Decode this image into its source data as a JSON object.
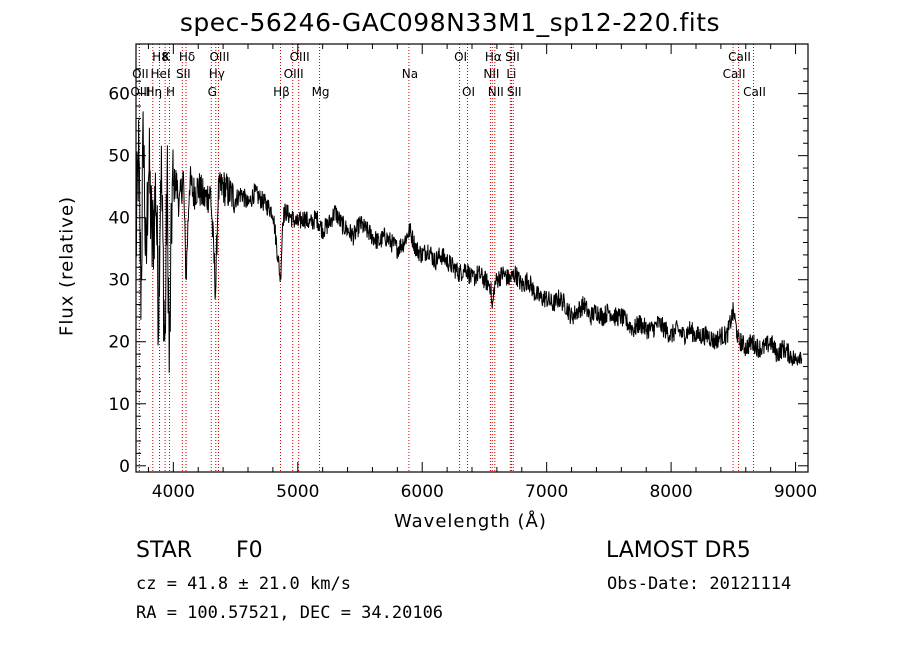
{
  "chart_data": {
    "type": "line",
    "title": "spec-56246-GAC098N33M1_sp12-220.fits",
    "xlabel": "Wavelength (Å)",
    "ylabel": "Flux (relative)",
    "xlim": [
      3700,
      9100
    ],
    "ylim": [
      -1,
      68
    ],
    "xticks": [
      4000,
      5000,
      6000,
      7000,
      8000,
      9000
    ],
    "yticks": [
      0,
      10,
      20,
      30,
      40,
      50,
      60
    ],
    "grid": false,
    "line_color": "#000000",
    "marker_color": "#cc0000",
    "spectrum": {
      "x": [
        3700,
        3720,
        3740,
        3760,
        3780,
        3800,
        3830,
        3860,
        3880,
        3900,
        3933,
        3950,
        3968,
        3990,
        4020,
        4050,
        4080,
        4102,
        4130,
        4160,
        4200,
        4250,
        4300,
        4340,
        4360,
        4400,
        4450,
        4500,
        4550,
        4600,
        4650,
        4700,
        4750,
        4800,
        4861,
        4880,
        4900,
        4950,
        5000,
        5050,
        5100,
        5150,
        5200,
        5250,
        5300,
        5350,
        5400,
        5450,
        5500,
        5550,
        5600,
        5650,
        5700,
        5750,
        5800,
        5850,
        5900,
        5950,
        6000,
        6050,
        6100,
        6150,
        6200,
        6250,
        6300,
        6350,
        6400,
        6450,
        6500,
        6550,
        6563,
        6580,
        6600,
        6650,
        6700,
        6750,
        6800,
        6850,
        6900,
        6950,
        7000,
        7050,
        7100,
        7150,
        7200,
        7250,
        7300,
        7350,
        7400,
        7450,
        7500,
        7550,
        7600,
        7650,
        7700,
        7750,
        7800,
        7850,
        7900,
        7950,
        8000,
        8050,
        8100,
        8150,
        8200,
        8250,
        8300,
        8350,
        8400,
        8450,
        8500,
        8542,
        8560,
        8600,
        8650,
        8700,
        8750,
        8800,
        8850,
        8900,
        8950,
        9000,
        9030,
        9050
      ],
      "y": [
        35,
        50,
        28,
        55,
        30,
        50,
        35,
        45,
        25,
        50,
        18,
        48,
        15,
        44,
        46,
        42,
        47,
        30,
        46,
        44,
        45,
        43,
        44,
        28,
        44,
        45,
        44,
        43,
        44,
        42,
        44,
        43,
        42,
        41,
        30,
        40,
        41,
        40,
        39,
        40,
        39,
        40,
        38,
        39,
        41,
        39,
        38,
        37,
        39,
        38,
        37,
        36,
        37,
        36,
        35,
        36,
        38,
        35,
        34,
        35,
        33,
        34,
        33,
        32,
        31,
        32,
        30,
        31,
        30,
        29,
        25,
        29,
        30,
        31,
        30,
        31,
        29,
        30,
        28,
        27,
        27,
        26,
        27,
        26,
        24,
        25,
        26,
        24,
        25,
        24,
        25,
        24,
        24,
        23,
        22,
        23,
        22,
        22,
        23,
        22,
        21,
        22,
        21,
        22,
        21,
        21,
        21,
        20,
        21,
        21,
        25,
        20,
        20,
        19,
        20,
        19,
        19,
        20,
        18,
        19,
        18,
        17,
        18,
        18
      ]
    },
    "line_markers": [
      {
        "label": "H8",
        "wavelength": 3889,
        "row": 0
      },
      {
        "label": "K",
        "wavelength": 3934,
        "row": 0
      },
      {
        "label": "Hδ",
        "wavelength": 4102,
        "row": 0
      },
      {
        "label": "OIII",
        "wavelength": 4363,
        "row": 0
      },
      {
        "label": "OIII",
        "wavelength": 5007,
        "row": 0
      },
      {
        "label": "OI",
        "wavelength": 6300,
        "row": 0
      },
      {
        "label": "Hα",
        "wavelength": 6563,
        "row": 0
      },
      {
        "label": "SII",
        "wavelength": 6717,
        "row": 0
      },
      {
        "label": "CaII",
        "wavelength": 8542,
        "row": 0
      },
      {
        "label": "OII",
        "wavelength": 3727,
        "row": 1
      },
      {
        "label": "HeI",
        "wavelength": 3889,
        "row": 1
      },
      {
        "label": "SII",
        "wavelength": 4072,
        "row": 1
      },
      {
        "label": "Hγ",
        "wavelength": 4341,
        "row": 1
      },
      {
        "label": "OIII",
        "wavelength": 4959,
        "row": 1
      },
      {
        "label": "Na",
        "wavelength": 5893,
        "row": 1
      },
      {
        "label": "NII",
        "wavelength": 6548,
        "row": 1
      },
      {
        "label": "Li",
        "wavelength": 6708,
        "row": 1
      },
      {
        "label": "CaII",
        "wavelength": 8498,
        "row": 1
      },
      {
        "label": "OIII",
        "wavelength": 3727,
        "row": 2
      },
      {
        "label": "Hη",
        "wavelength": 3835,
        "row": 2
      },
      {
        "label": "H",
        "wavelength": 3969,
        "row": 2
      },
      {
        "label": "G",
        "wavelength": 4305,
        "row": 2
      },
      {
        "label": "Hβ",
        "wavelength": 4861,
        "row": 2
      },
      {
        "label": "Mg",
        "wavelength": 5175,
        "row": 2
      },
      {
        "label": "OI",
        "wavelength": 6364,
        "row": 2
      },
      {
        "label": "NII",
        "wavelength": 6583,
        "row": 2
      },
      {
        "label": "SII",
        "wavelength": 6731,
        "row": 2
      },
      {
        "label": "CaII",
        "wavelength": 8662,
        "row": 2
      }
    ]
  },
  "info": {
    "object_class": "STAR",
    "subclass": "F0",
    "survey": "LAMOST DR5",
    "redshift_text": "cz = 41.8 ± 21.0 km/s",
    "obs_date_text": "Obs-Date: 20121114",
    "coords_text": "RA = 100.57521, DEC =  34.20106"
  }
}
